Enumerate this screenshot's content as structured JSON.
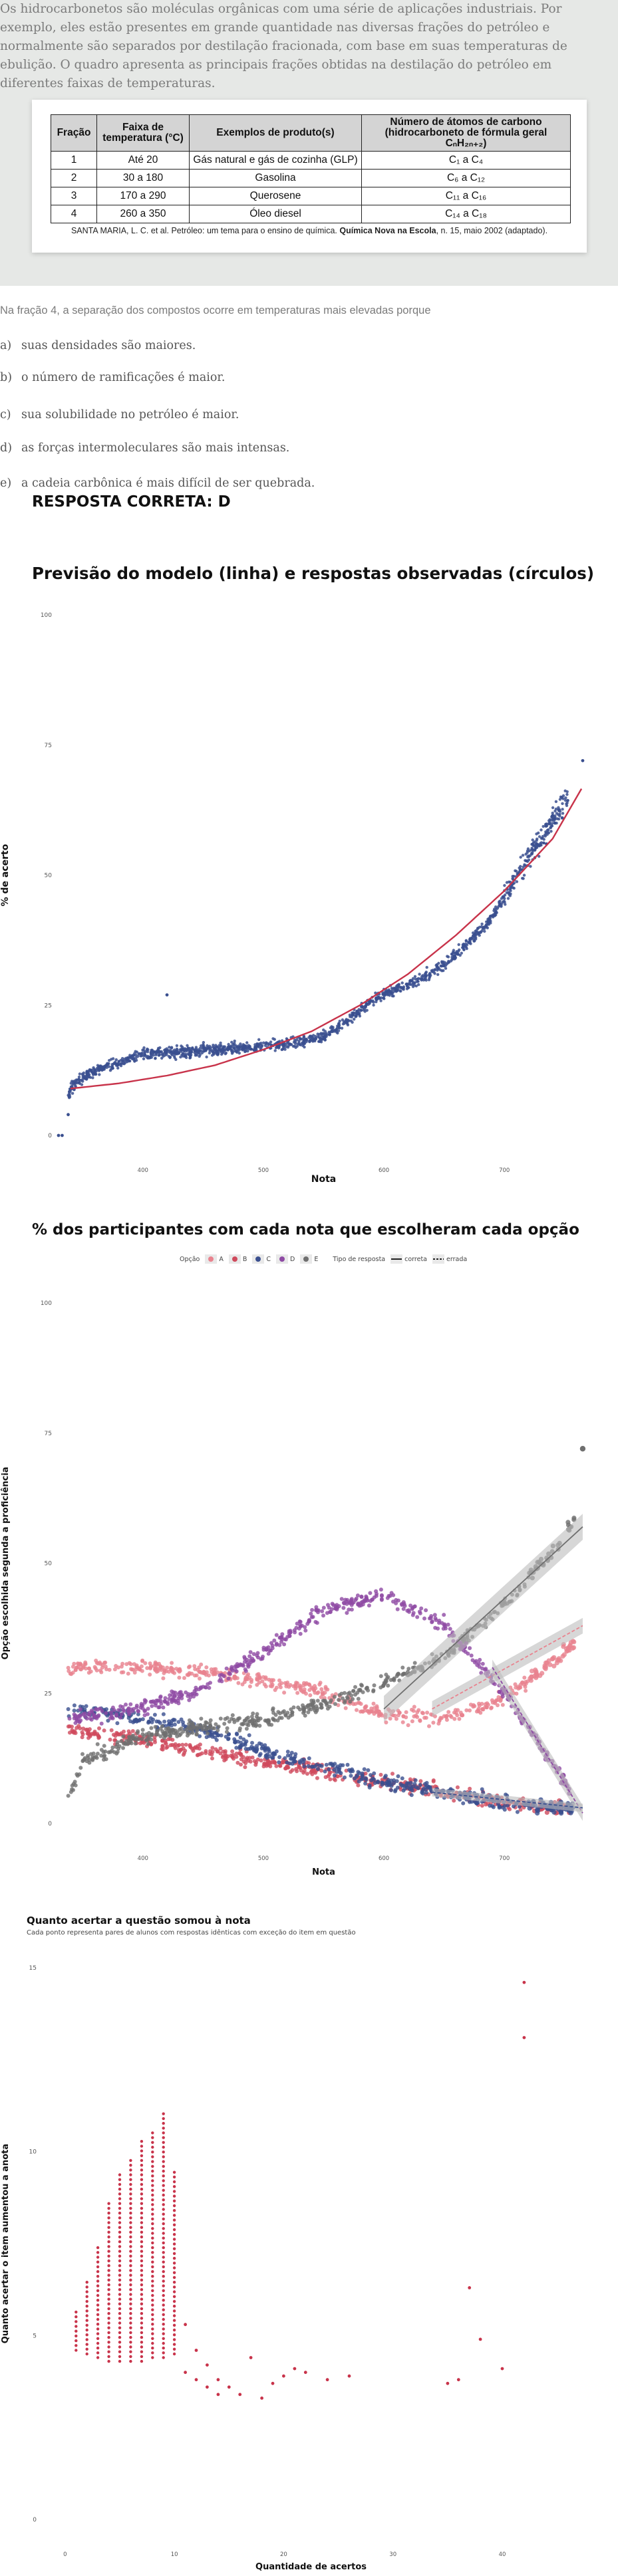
{
  "question": {
    "intro": "Os hidrocarbonetos são moléculas orgânicas com uma série de aplicações industriais. Por exemplo, eles estão presentes em grande quantidade nas diversas frações do petróleo e normalmente são separados por destilação fracionada, com base em suas temperaturas de ebulição. O quadro apresenta as principais frações obtidas na destilação do petróleo em diferentes faixas de temperaturas.",
    "table": {
      "headers": [
        "Fração",
        "Faixa de temperatura (°C)",
        "Exemplos de produto(s)",
        "Número de átomos de carbono (hidrocarboneto de fórmula geral CₙH₂ₙ₊₂)"
      ],
      "rows": [
        [
          "1",
          "Até 20",
          "Gás natural e gás de cozinha (GLP)",
          "C₁ a C₄"
        ],
        [
          "2",
          "30 a 180",
          "Gasolina",
          "C₆ a C₁₂"
        ],
        [
          "3",
          "170 a 290",
          "Querosene",
          "C₁₁ a C₁₆"
        ],
        [
          "4",
          "260 a 350",
          "Óleo diesel",
          "C₁₄ a C₁₈"
        ]
      ]
    },
    "citation_normal": "SANTA MARIA, L. C. et al. Petróleo: um tema para o ensino de química. ",
    "citation_bold": "Química Nova na Escola",
    "citation_end": ", n. 15, maio 2002 (adaptado).",
    "stem": "Na fração 4, a separação dos compostos ocorre em temperaturas mais elevadas porque",
    "options": [
      {
        "letter": "a)",
        "text": "suas densidades são maiores."
      },
      {
        "letter": "b)",
        "text": "o número de ramificações é maior."
      },
      {
        "letter": "c)",
        "text": "sua solubilidade no petróleo é maior."
      },
      {
        "letter": "d)",
        "text": "as forças intermoleculares são mais intensas."
      },
      {
        "letter": "e)",
        "text": "a cadeia carbônica é mais difícil de ser quebrada."
      }
    ],
    "answer": "RESPOSTA CORRETA: D"
  },
  "colors": {
    "page_bg": "#ffffff",
    "stimulus_bg": "#e6e8e6",
    "navy": "#3a4f8f",
    "red": "#c8334a",
    "A": "#e9828e",
    "B": "#cf4a5c",
    "C": "#3a4f8f",
    "D": "#8e4aa4",
    "E": "#6f6f6f",
    "band": "#bdbdbd",
    "crimson_points": "#c8334a"
  },
  "chart_data": [
    {
      "type": "scatter",
      "title": "Previsão do modelo (linha) e respostas observadas (círculos)",
      "xlabel": "Nota",
      "ylabel": "% de acerto",
      "x_ticks": [
        400,
        500,
        600,
        700
      ],
      "y_ticks": [
        0,
        25,
        50,
        75,
        100
      ],
      "xlim": [
        330,
        770
      ],
      "ylim": [
        0,
        100
      ],
      "grid": false,
      "observed_profile": {
        "x": [
          330,
          335,
          340,
          350,
          360,
          380,
          400,
          430,
          460,
          490,
          520,
          550,
          570,
          590,
          610,
          630,
          650,
          670,
          690,
          710,
          730,
          750,
          765
        ],
        "y": [
          0,
          5,
          9,
          11,
          12.5,
          14,
          15.5,
          16,
          16.5,
          17,
          17.5,
          19,
          22,
          26,
          28,
          30,
          33,
          37,
          42,
          50,
          57,
          64,
          72
        ]
      },
      "model_curve": {
        "x": [
          340,
          380,
          420,
          460,
          500,
          540,
          580,
          620,
          660,
          700,
          740,
          765
        ],
        "y": [
          9,
          10,
          11.5,
          13.5,
          16.5,
          20,
          25,
          31,
          38.5,
          47,
          57,
          67
        ]
      }
    },
    {
      "type": "scatter",
      "title": "% dos participantes com cada nota que escolheram cada opção",
      "xlabel": "Nota",
      "ylabel": "Opção escolhida segunda a proficiência",
      "legend": {
        "option_label": "Opção",
        "options": [
          "A",
          "B",
          "C",
          "D",
          "E"
        ],
        "type_label": "Tipo de resposta",
        "types": [
          "correta",
          "errada"
        ],
        "position": "top-center"
      },
      "x_ticks": [
        400,
        500,
        600,
        700
      ],
      "y_ticks": [
        0,
        25,
        50,
        75,
        100
      ],
      "xlim": [
        330,
        770
      ],
      "ylim": [
        0,
        100
      ],
      "grid": false,
      "series": [
        {
          "name": "A",
          "x": [
            340,
            400,
            450,
            500,
            550,
            600,
            650,
            700,
            750,
            765
          ],
          "y": [
            30,
            30,
            29,
            27.5,
            25,
            21,
            20,
            24,
            33,
            36
          ]
        },
        {
          "name": "B",
          "x": [
            340,
            400,
            450,
            500,
            550,
            600,
            650,
            700,
            750,
            765
          ],
          "y": [
            18,
            16,
            14,
            12,
            10,
            8,
            6,
            4,
            3,
            2
          ]
        },
        {
          "name": "C",
          "x": [
            340,
            400,
            450,
            500,
            550,
            600,
            650,
            700,
            750,
            765
          ],
          "y": [
            22,
            20,
            18,
            14,
            11,
            8,
            6,
            4,
            3,
            3
          ]
        },
        {
          "name": "D",
          "x": [
            340,
            400,
            450,
            500,
            550,
            600,
            650,
            700,
            750,
            765
          ],
          "y": [
            20,
            22,
            26,
            33,
            41,
            44,
            38,
            25,
            8,
            2
          ]
        },
        {
          "name": "E",
          "x": [
            340,
            350,
            400,
            450,
            500,
            550,
            600,
            650,
            700,
            750,
            765
          ],
          "y": [
            6,
            12,
            17,
            18.5,
            20,
            23,
            27,
            32,
            42,
            55,
            62
          ]
        }
      ]
    },
    {
      "type": "scatter",
      "title": "Quanto acertar a questão somou à nota",
      "subtitle": "Cada ponto representa pares de alunos com respostas idênticas com exceção do item em questão",
      "xlabel": "Quantidade de acertos",
      "ylabel": "Quanto acertar o item aumentou a anota",
      "x_ticks": [
        0,
        10,
        20,
        30,
        40
      ],
      "y_ticks": [
        0,
        5,
        10,
        15
      ],
      "xlim": [
        -2,
        47
      ],
      "ylim": [
        0,
        15
      ],
      "grid": false,
      "column_ranges": [
        [
          1,
          4.6,
          5.7
        ],
        [
          2,
          4.5,
          6.5
        ],
        [
          3,
          4.4,
          7.4
        ],
        [
          4,
          4.3,
          8.6
        ],
        [
          5,
          4.3,
          9.4
        ],
        [
          6,
          4.3,
          9.8
        ],
        [
          7,
          4.3,
          10.3
        ],
        [
          8,
          4.4,
          10.6
        ],
        [
          9,
          4.4,
          11.1
        ],
        [
          10,
          4.5,
          9.5
        ]
      ],
      "scatter_points": {
        "x": [
          11,
          11,
          12,
          12,
          13,
          13,
          14,
          14,
          15,
          16,
          17,
          18,
          19,
          20,
          21,
          22,
          24,
          26,
          35,
          36,
          37,
          38,
          40,
          42,
          42
        ],
        "y": [
          5.3,
          4.0,
          4.6,
          3.8,
          3.6,
          4.2,
          3.4,
          3.8,
          3.6,
          3.4,
          4.4,
          3.3,
          3.7,
          3.9,
          4.1,
          4.0,
          3.8,
          3.9,
          3.7,
          3.8,
          6.3,
          4.9,
          4.1,
          13.1,
          14.6
        ]
      }
    }
  ]
}
